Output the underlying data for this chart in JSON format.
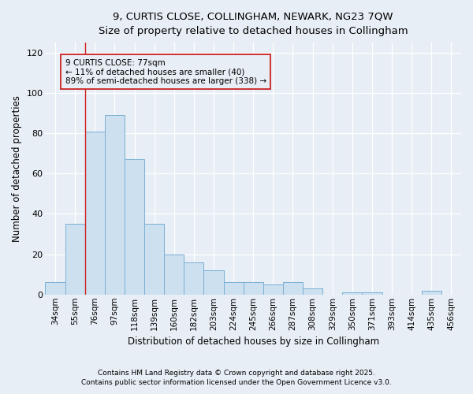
{
  "title": "9, CURTIS CLOSE, COLLINGHAM, NEWARK, NG23 7QW",
  "subtitle": "Size of property relative to detached houses in Collingham",
  "xlabel": "Distribution of detached houses by size in Collingham",
  "ylabel": "Number of detached properties",
  "bar_color": "#cce0f0",
  "bar_edge_color": "#7aafd4",
  "background_color": "#e8eef5",
  "categories": [
    "34sqm",
    "55sqm",
    "76sqm",
    "97sqm",
    "118sqm",
    "139sqm",
    "160sqm",
    "182sqm",
    "203sqm",
    "224sqm",
    "245sqm",
    "266sqm",
    "287sqm",
    "308sqm",
    "329sqm",
    "350sqm",
    "371sqm",
    "393sqm",
    "414sqm",
    "435sqm",
    "456sqm"
  ],
  "values": [
    6,
    35,
    81,
    89,
    67,
    35,
    20,
    16,
    12,
    6,
    6,
    5,
    6,
    3,
    0,
    1,
    1,
    0,
    0,
    2,
    0
  ],
  "red_line_index": 2,
  "marker_color": "#cc2222",
  "annotation_title": "9 CURTIS CLOSE: 77sqm",
  "annotation_line1": "← 11% of detached houses are smaller (40)",
  "annotation_line2": "89% of semi-detached houses are larger (338) →",
  "ylim": [
    0,
    125
  ],
  "yticks": [
    0,
    20,
    40,
    60,
    80,
    100,
    120
  ],
  "footer1": "Contains HM Land Registry data © Crown copyright and database right 2025.",
  "footer2": "Contains public sector information licensed under the Open Government Licence v3.0."
}
